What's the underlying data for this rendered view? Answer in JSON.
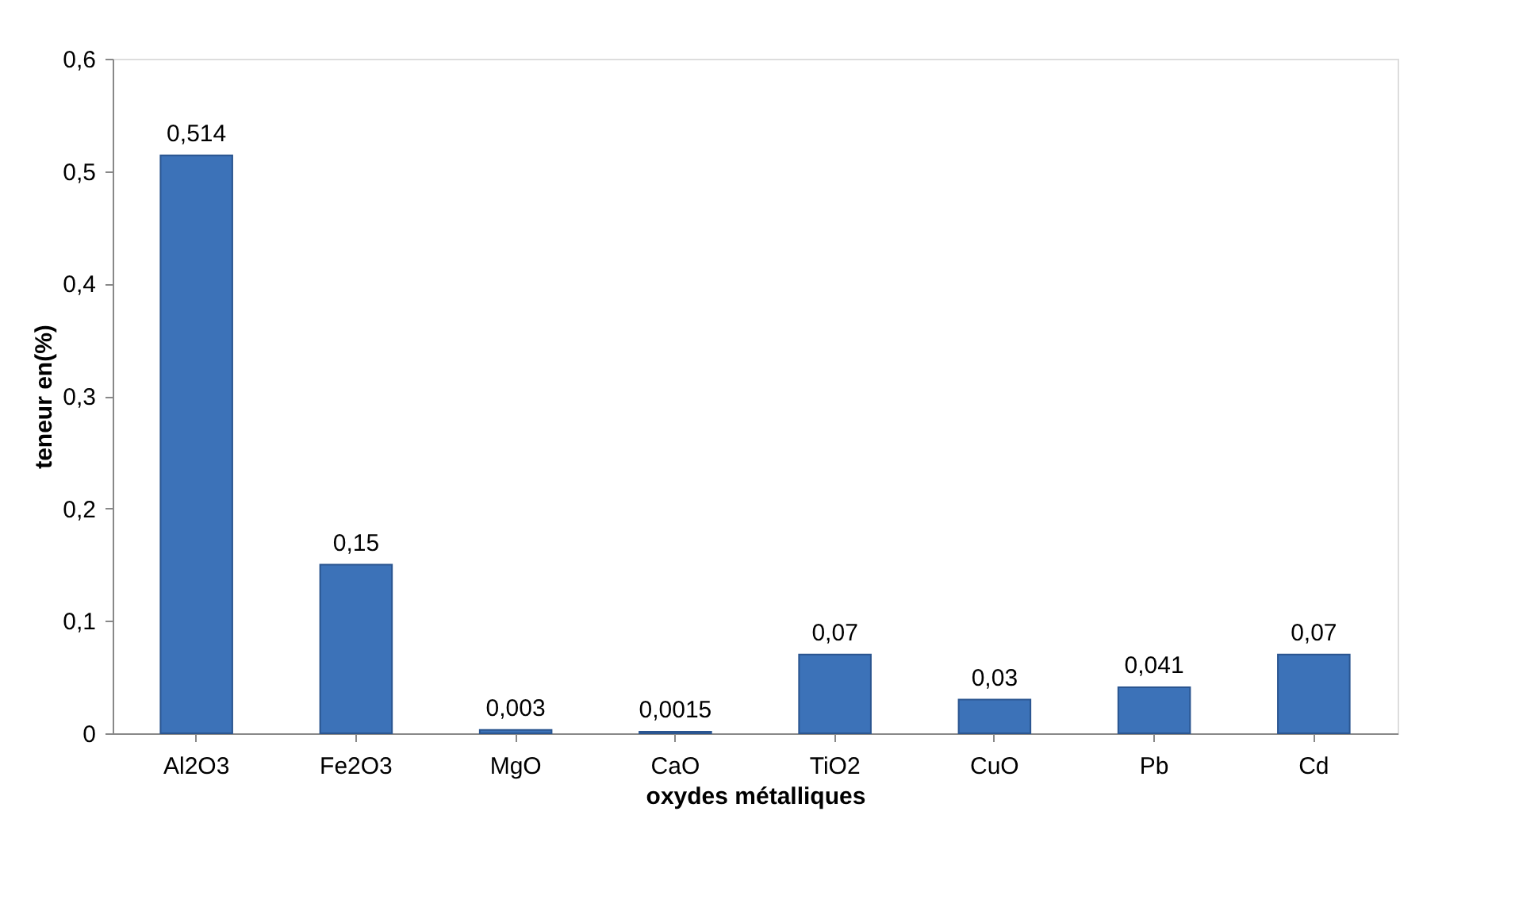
{
  "chart_data": {
    "type": "bar",
    "xlabel": "oxydes métalliques",
    "ylabel": "teneur en(%)",
    "categories": [
      "Al2O3",
      "Fe2O3",
      "MgO",
      "CaO",
      "TiO2",
      "CuO",
      "Pb",
      "Cd"
    ],
    "values": [
      0.514,
      0.15,
      0.003,
      0.0015,
      0.07,
      0.03,
      0.041,
      0.07
    ],
    "value_labels": [
      "0,514",
      "0,15",
      "0,003",
      "0,0015",
      "0,07",
      "0,03",
      "0,041",
      "0,07"
    ],
    "color": "#3c72b8",
    "ylim": [
      0,
      0.6
    ],
    "yticks": [
      {
        "value": 0,
        "label": "0"
      },
      {
        "value": 0.1,
        "label": "0,1"
      },
      {
        "value": 0.2,
        "label": "0,2"
      },
      {
        "value": 0.3,
        "label": "0,3"
      },
      {
        "value": 0.4,
        "label": "0,4"
      },
      {
        "value": 0.5,
        "label": "0,5"
      },
      {
        "value": 0.6,
        "label": "0,6"
      }
    ],
    "grid": false
  }
}
